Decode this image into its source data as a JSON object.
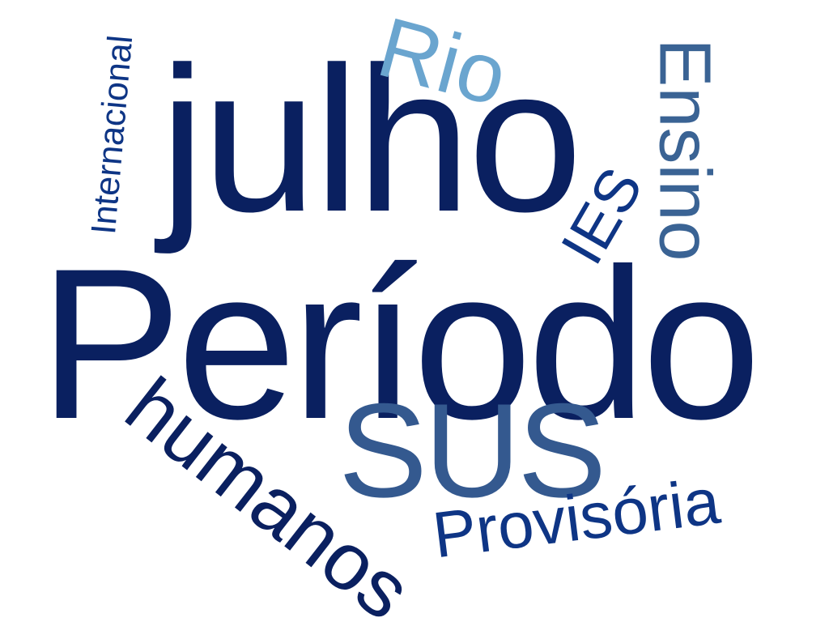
{
  "words": [
    {
      "key": "periodo",
      "text": "Período",
      "color": "#0a2060",
      "rotation": 0
    },
    {
      "key": "julho",
      "text": "julho",
      "color": "#0a2060",
      "rotation": 0
    },
    {
      "key": "sus",
      "text": "SUS",
      "color": "#34598f",
      "rotation": 0
    },
    {
      "key": "provisoria",
      "text": "Provisória",
      "color": "#0e3585",
      "rotation": -7
    },
    {
      "key": "humanos",
      "text": "humanos",
      "color": "#0a2060",
      "rotation": 38
    },
    {
      "key": "rio",
      "text": "Rio",
      "color": "#6aa5cf",
      "rotation": 15
    },
    {
      "key": "ensino",
      "text": "Ensino",
      "color": "#3a6394",
      "rotation": 90
    },
    {
      "key": "ies",
      "text": "IES",
      "color": "#0e3585",
      "rotation": -60
    },
    {
      "key": "internacional",
      "text": "Internacional",
      "color": "#0e3585",
      "rotation": -85
    }
  ]
}
